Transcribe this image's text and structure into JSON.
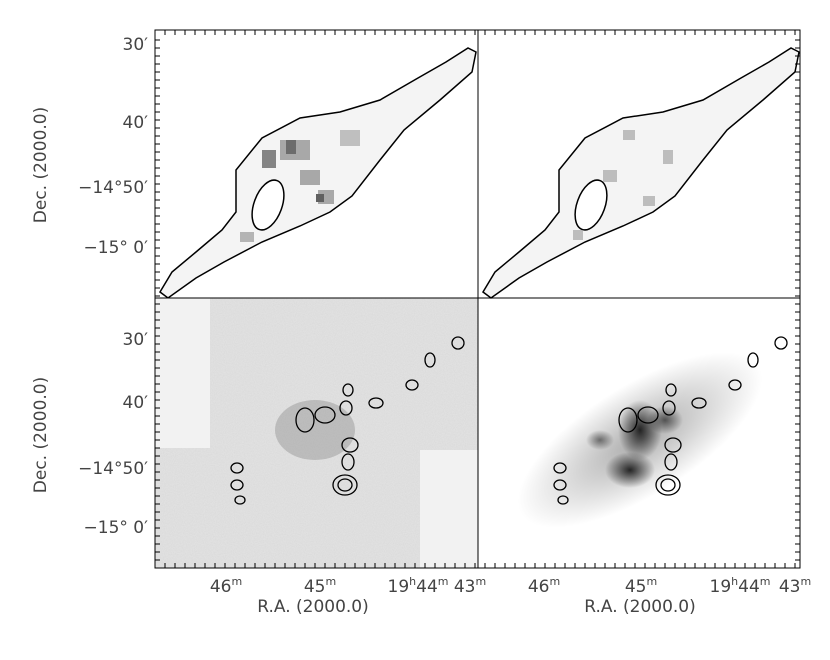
{
  "y_axis": {
    "label": "Dec. (2000.0)",
    "ticks": [
      "30′",
      "40′",
      "−14°50′",
      "−15° 0′"
    ]
  },
  "x_axis": {
    "label": "R.A. (2000.0)",
    "ticks": [
      [
        "46",
        "m"
      ],
      [
        "45",
        "m"
      ],
      [
        "19",
        "h",
        "44",
        "m"
      ],
      [
        "43",
        "m"
      ]
    ]
  }
}
